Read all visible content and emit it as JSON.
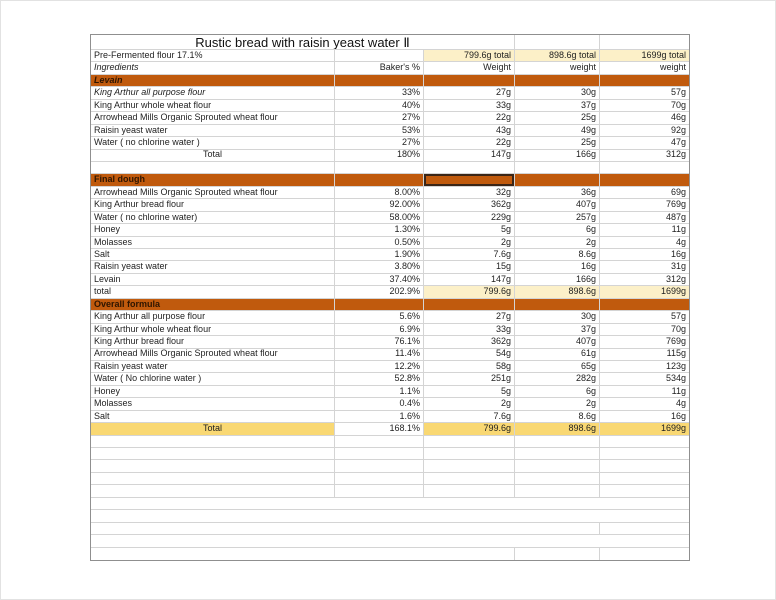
{
  "app": {
    "kind": "spreadsheet-recipe-sheet",
    "colors": {
      "section_band": "#C05A0D",
      "cream_highlight": "#FCF0C8",
      "gold_highlight": "#F9D873",
      "gridline": "#d4d4d4",
      "outer_border": "#8f8f8f"
    }
  },
  "table": {
    "title": "Rustic bread with raisin yeast water Ⅱ",
    "rows": [
      {
        "name": "title-row",
        "title": true,
        "cells": [
          [
            "",
            "title-text c",
            3,
            "sheet-title"
          ],
          [
            "",
            "",
            1
          ],
          [
            "",
            "",
            1
          ]
        ]
      },
      {
        "name": "prefermented-row",
        "cells": [
          [
            "Pre-Fermented flour 17.1%",
            "l"
          ],
          [
            "",
            ""
          ],
          [
            "799.6g total",
            "r cream"
          ],
          [
            "898.6g total",
            "r cream"
          ],
          [
            "1699g total",
            "r cream"
          ]
        ]
      },
      {
        "name": "column-header-row",
        "cells": [
          [
            "Ingredients",
            "l i"
          ],
          [
            "Baker's %",
            "r"
          ],
          [
            "Weight",
            "r"
          ],
          [
            "weight",
            "r"
          ],
          [
            "weight",
            "r"
          ]
        ]
      },
      {
        "name": "section-levain",
        "cells": [
          [
            "Levain",
            "l i b orange"
          ],
          [
            "",
            "orange"
          ],
          [
            "",
            "orange"
          ],
          [
            "",
            "orange"
          ],
          [
            "",
            "orange"
          ]
        ]
      },
      {
        "name": "levain-row-1",
        "cells": [
          [
            "King Arthur all purpose flour",
            "l i"
          ],
          [
            "33%",
            "r"
          ],
          [
            "27g",
            "r"
          ],
          [
            "30g",
            "r"
          ],
          [
            "57g",
            "r"
          ]
        ]
      },
      {
        "name": "levain-row-2",
        "cells": [
          [
            "King Arthur whole wheat flour",
            "l"
          ],
          [
            "40%",
            "r"
          ],
          [
            "33g",
            "r"
          ],
          [
            "37g",
            "r"
          ],
          [
            "70g",
            "r"
          ]
        ]
      },
      {
        "name": "levain-row-3",
        "cells": [
          [
            "Arrowhead Mills Organic Sprouted wheat flour",
            "l"
          ],
          [
            "27%",
            "r"
          ],
          [
            "22g",
            "r"
          ],
          [
            "25g",
            "r"
          ],
          [
            "46g",
            "r"
          ]
        ]
      },
      {
        "name": "levain-row-4",
        "cells": [
          [
            "Raisin yeast water",
            "l"
          ],
          [
            "53%",
            "r"
          ],
          [
            "43g",
            "r"
          ],
          [
            "49g",
            "r"
          ],
          [
            "92g",
            "r"
          ]
        ]
      },
      {
        "name": "levain-row-5",
        "cells": [
          [
            "Water ( no chlorine water )",
            "l"
          ],
          [
            "27%",
            "r"
          ],
          [
            "22g",
            "r"
          ],
          [
            "25g",
            "r"
          ],
          [
            "47g",
            "r"
          ]
        ]
      },
      {
        "name": "levain-total-row",
        "cells": [
          [
            "Total",
            "c"
          ],
          [
            "180%",
            "r"
          ],
          [
            "147g",
            "r"
          ],
          [
            "166g",
            "r"
          ],
          [
            "312g",
            "r"
          ]
        ]
      },
      {
        "name": "blank-row",
        "cells": [
          [
            "",
            ""
          ],
          [
            "",
            ""
          ],
          [
            "",
            ""
          ],
          [
            "",
            ""
          ],
          [
            "",
            ""
          ]
        ]
      },
      {
        "name": "section-final-dough",
        "cells": [
          [
            "Final dough",
            "l b orange"
          ],
          [
            "",
            "orange"
          ],
          [
            "",
            "orange sel",
            1,
            "selected-cell"
          ],
          [
            "",
            "orange"
          ],
          [
            "",
            "orange"
          ]
        ]
      },
      {
        "name": "final-row-1",
        "cells": [
          [
            "Arrowhead Mills Organic Sprouted wheat flour",
            "l"
          ],
          [
            "8.00%",
            "r"
          ],
          [
            "32g",
            "r"
          ],
          [
            "36g",
            "r"
          ],
          [
            "69g",
            "r"
          ]
        ]
      },
      {
        "name": "final-row-2",
        "cells": [
          [
            "King Arthur bread flour",
            "l"
          ],
          [
            "92.00%",
            "r"
          ],
          [
            "362g",
            "r"
          ],
          [
            "407g",
            "r"
          ],
          [
            "769g",
            "r"
          ]
        ]
      },
      {
        "name": "final-row-3",
        "cells": [
          [
            "Water ( no chlorine water)",
            "l"
          ],
          [
            "58.00%",
            "r"
          ],
          [
            "229g",
            "r"
          ],
          [
            "257g",
            "r"
          ],
          [
            "487g",
            "r"
          ]
        ]
      },
      {
        "name": "final-row-4",
        "cells": [
          [
            "Honey",
            "l"
          ],
          [
            "1.30%",
            "r"
          ],
          [
            "5g",
            "r"
          ],
          [
            "6g",
            "r"
          ],
          [
            "11g",
            "r"
          ]
        ]
      },
      {
        "name": "final-row-5",
        "cells": [
          [
            "Molasses",
            "l"
          ],
          [
            "0.50%",
            "r"
          ],
          [
            "2g",
            "r"
          ],
          [
            "2g",
            "r"
          ],
          [
            "4g",
            "r"
          ]
        ]
      },
      {
        "name": "final-row-6",
        "cells": [
          [
            "Salt",
            "l"
          ],
          [
            "1.90%",
            "r"
          ],
          [
            "7.6g",
            "r"
          ],
          [
            "8.6g",
            "r"
          ],
          [
            "16g",
            "r"
          ]
        ]
      },
      {
        "name": "final-row-7",
        "cells": [
          [
            "Raisin yeast water",
            "l"
          ],
          [
            "3.80%",
            "r"
          ],
          [
            "15g",
            "r"
          ],
          [
            "16g",
            "r"
          ],
          [
            "31g",
            "r"
          ]
        ]
      },
      {
        "name": "final-row-8",
        "cells": [
          [
            "Levain",
            "l"
          ],
          [
            "37.40%",
            "r"
          ],
          [
            "147g",
            "r"
          ],
          [
            "166g",
            "r"
          ],
          [
            "312g",
            "r"
          ]
        ]
      },
      {
        "name": "final-total-row",
        "cells": [
          [
            "total",
            "l"
          ],
          [
            "202.9%",
            "r"
          ],
          [
            "799.6g",
            "r cream"
          ],
          [
            "898.6g",
            "r cream"
          ],
          [
            "1699g",
            "r cream"
          ]
        ]
      },
      {
        "name": "section-overall-formula",
        "cells": [
          [
            "Overall formula",
            "l b orange"
          ],
          [
            "",
            "orange"
          ],
          [
            "",
            "orange"
          ],
          [
            "",
            "orange"
          ],
          [
            "",
            "orange"
          ]
        ]
      },
      {
        "name": "overall-row-1",
        "cells": [
          [
            "King Arthur all purpose flour",
            "l"
          ],
          [
            "5.6%",
            "r"
          ],
          [
            "27g",
            "r"
          ],
          [
            "30g",
            "r"
          ],
          [
            "57g",
            "r"
          ]
        ]
      },
      {
        "name": "overall-row-2",
        "cells": [
          [
            "King Arthur whole wheat flour",
            "l"
          ],
          [
            "6.9%",
            "r"
          ],
          [
            "33g",
            "r"
          ],
          [
            "37g",
            "r"
          ],
          [
            "70g",
            "r"
          ]
        ]
      },
      {
        "name": "overall-row-3",
        "cells": [
          [
            "King Arthur bread flour",
            "l"
          ],
          [
            "76.1%",
            "r"
          ],
          [
            "362g",
            "r"
          ],
          [
            "407g",
            "r"
          ],
          [
            "769g",
            "r"
          ]
        ]
      },
      {
        "name": "overall-row-4",
        "cells": [
          [
            "Arrowhead Mills Organic Sprouted wheat flour",
            "l"
          ],
          [
            "11.4%",
            "r"
          ],
          [
            "54g",
            "r"
          ],
          [
            "61g",
            "r"
          ],
          [
            "115g",
            "r"
          ]
        ]
      },
      {
        "name": "overall-row-5",
        "cells": [
          [
            "Raisin yeast water",
            "l"
          ],
          [
            "12.2%",
            "r"
          ],
          [
            "58g",
            "r"
          ],
          [
            "65g",
            "r"
          ],
          [
            "123g",
            "r"
          ]
        ]
      },
      {
        "name": "overall-row-6",
        "cells": [
          [
            "Water ( No chlorine water )",
            "l"
          ],
          [
            "52.8%",
            "r"
          ],
          [
            "251g",
            "r"
          ],
          [
            "282g",
            "r"
          ],
          [
            "534g",
            "r"
          ]
        ]
      },
      {
        "name": "overall-row-7",
        "cells": [
          [
            "Honey",
            "l"
          ],
          [
            "1.1%",
            "r"
          ],
          [
            "5g",
            "r"
          ],
          [
            "6g",
            "r"
          ],
          [
            "11g",
            "r"
          ]
        ]
      },
      {
        "name": "overall-row-8",
        "cells": [
          [
            "Molasses",
            "l"
          ],
          [
            "0.4%",
            "r"
          ],
          [
            "2g",
            "r"
          ],
          [
            "2g",
            "r"
          ],
          [
            "4g",
            "r"
          ]
        ]
      },
      {
        "name": "overall-row-9",
        "cells": [
          [
            "Salt",
            "l"
          ],
          [
            "1.6%",
            "r"
          ],
          [
            "7.6g",
            "r"
          ],
          [
            "8.6g",
            "r"
          ],
          [
            "16g",
            "r"
          ]
        ]
      },
      {
        "name": "overall-total-row",
        "cells": [
          [
            "Total",
            "c gold"
          ],
          [
            "168.1%",
            "r"
          ],
          [
            "799.6g",
            "r gold"
          ],
          [
            "898.6g",
            "r gold"
          ],
          [
            "1699g",
            "r gold"
          ]
        ]
      },
      {
        "name": "blank-row",
        "cells": [
          [
            "",
            ""
          ],
          [
            "",
            ""
          ],
          [
            "",
            ""
          ],
          [
            "",
            ""
          ],
          [
            "",
            ""
          ]
        ]
      },
      {
        "name": "blank-row",
        "cells": [
          [
            "",
            ""
          ],
          [
            "",
            ""
          ],
          [
            "",
            ""
          ],
          [
            "",
            ""
          ],
          [
            "",
            ""
          ]
        ]
      },
      {
        "name": "blank-row",
        "cells": [
          [
            "",
            ""
          ],
          [
            "",
            ""
          ],
          [
            "",
            ""
          ],
          [
            "",
            ""
          ],
          [
            "",
            ""
          ]
        ]
      },
      {
        "name": "blank-row",
        "cells": [
          [
            "",
            ""
          ],
          [
            "",
            ""
          ],
          [
            "",
            ""
          ],
          [
            "",
            ""
          ],
          [
            "",
            ""
          ]
        ]
      },
      {
        "name": "blank-row",
        "cells": [
          [
            "",
            ""
          ],
          [
            "",
            ""
          ],
          [
            "",
            ""
          ],
          [
            "",
            ""
          ],
          [
            "",
            ""
          ]
        ]
      },
      {
        "name": "blank-wide-row",
        "cells": [
          [
            "",
            "",
            5
          ]
        ]
      },
      {
        "name": "blank-wide-row",
        "cells": [
          [
            "",
            "",
            5
          ]
        ]
      },
      {
        "name": "blank-wide-row",
        "cells": [
          [
            "",
            "",
            4
          ],
          [
            "",
            "",
            1
          ]
        ]
      },
      {
        "name": "blank-wide-row",
        "cells": [
          [
            "",
            "",
            5
          ]
        ]
      },
      {
        "name": "blank-wide-row",
        "cells": [
          [
            "",
            "",
            3
          ],
          [
            "",
            "",
            1
          ],
          [
            "",
            "",
            1
          ]
        ]
      }
    ]
  }
}
